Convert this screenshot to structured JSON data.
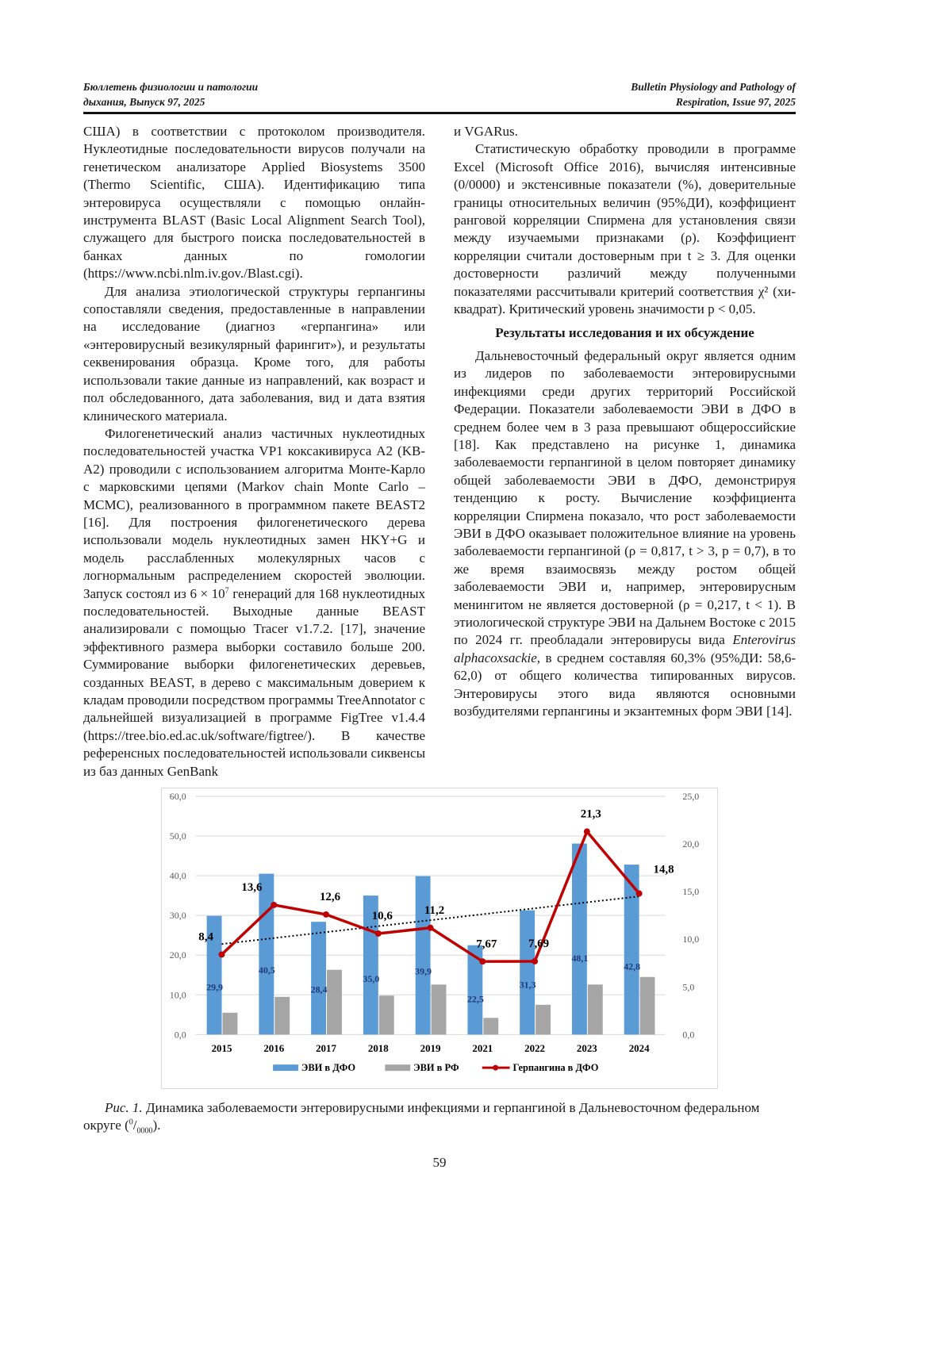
{
  "header": {
    "left_line1": "Бюллетень физиологии и патологии",
    "left_line2": "дыхания, Выпуск 97, 2025",
    "right_line1": "Bulletin Physiology and Pathology of",
    "right_line2": "Respiration, Issue 97, 2025"
  },
  "left_column": {
    "p0": "США) в соответствии с протоколом производителя. Нуклеотидные последовательности вирусов получали на генетическом анализаторе Applied Biosystems 3500 (Thermo Scientific, США). Идентификацию типа энтеровируса осуществляли с помощью онлайн-инструмента BLAST (Basic Local Alignment Search Tool), служащего для быстрого поиска последовательностей в банках данных по гомологии (https://www.ncbi.nlm.iv.gov./Blast.cgi).",
    "p1": "Для анализа этиологической структуры герпангины сопоставляли сведения, предоставленные в направлении на исследование (диагноз «герпангина» или «энтеровирусный везикулярный фарингит»), и результаты секвенирования образца. Кроме того, для работы использовали такие данные из направлений, как возраст и пол обследованного, дата заболевания, вид и дата взятия клинического материала.",
    "p2a": "Филогенетический анализ частичных нуклеотидных последовательностей участка VP1 коксакивируса A2 (KB-A2) проводили с использованием алгоритма Монте-Карло с марковскими цепями (Markov chain Monte Carlo – MCMC), реализованного в программном пакете BEAST2 [16]. Для построения филогенетического дерева использовали модель нуклеотидных замен HKY+G и модель расслабленных молекулярных часов с логнормальным распределением скоростей эволюции. Запуск состоял из 6 × 10",
    "p2sup": "7",
    "p2b": " генераций для 168 нуклеотидных последовательностей. Выходные данные BEAST анализировали с помощью Tracer v1.7.2. [17], значение эффективного размера выборки составило больше 200. Суммирование выборки филогенетических деревьев, созданных BEAST, в дерево с максимальным доверием к кладам проводили посредством программы TreeAnnotator с дальнейшей визуализацией в программе FigTree v1.4.4 (https://tree.bio.ed.ac.uk/software/figtree/). В качестве референсных последовательностей использовали сиквенсы из баз данных GenBank"
  },
  "right_column": {
    "p0": "и VGARus.",
    "p1": "Статистическую обработку проводили в программе Excel (Microsoft Office 2016), вычисляя интенсивные (0/0000) и экстенсивные показатели (%), доверительные границы относительных величин (95%ДИ), коэффициент ранговой корреляции Спирмена для установления связи между изучаемыми признаками (ρ). Коэффициент корреляции считали достоверным при t ≥ 3. Для оценки достоверности различий между полученными показателями рассчитывали критерий соответствия χ² (хи-квадрат). Критический уровень значимости p < 0,05.",
    "heading": "Результаты исследования и их обсуждение",
    "p2a": "Дальневосточный федеральный округ является одним из лидеров по заболеваемости энтеровирусными инфекциями среди других территорий Российской Федерации. Показатели заболеваемости ЭВИ в ДФО в среднем более чем в 3 раза превышают общероссийские [18]. Как представлено на рисунке 1, динамика заболеваемости герпангиной в целом повторяет динамику общей заболеваемости ЭВИ в ДФО, демонстрируя тенденцию к росту. Вычисление коэффициента корреляции Спирмена показало, что рост заболеваемости ЭВИ в ДФО оказывает положительное влияние на уровень заболеваемости герпангиной (ρ = 0,817, t > 3, p = 0,7), в то же время взаимосвязь между ростом общей заболеваемости ЭВИ и, например, энтеровирусным менингитом не является достоверной (ρ = 0,217, t < 1). В этиологической структуре ЭВИ на Дальнем Востоке с 2015 по 2024 гг. преобладали энтеровирусы вида ",
    "p2italic": "Enterovirus alphacoxsackie",
    "p2b": ", в среднем составляя 60,3% (95%ДИ: 58,6-62,0) от общего количества типированных вирусов. Энтеровирусы этого вида являются основными возбудителями герпангины и экзантемных форм ЭВИ [14]."
  },
  "caption": {
    "label": "Рис. 1.",
    "text": " Динамика заболеваемости энтеровирусными инфекциями и герпангиной в Дальневосточном федеральном округе (",
    "sup": "0",
    "slash": "/",
    "sub": "0000",
    "end": ")."
  },
  "page_number": "59",
  "chart_data": {
    "type": "bar+line",
    "categories": [
      "2015",
      "2016",
      "2017",
      "2018",
      "2019",
      "2021",
      "2022",
      "2023",
      "2024"
    ],
    "y_left": {
      "range": [
        0,
        60
      ],
      "ticks": [
        "0,0",
        "10,0",
        "20,0",
        "30,0",
        "40,0",
        "50,0",
        "60,0"
      ]
    },
    "y_right": {
      "range": [
        0,
        25
      ],
      "ticks": [
        "0,0",
        "5,0",
        "10,0",
        "15,0",
        "20,0",
        "25,0"
      ]
    },
    "grid": true,
    "legend_position": "bottom",
    "series": [
      {
        "name": "ЭВИ в ДФО",
        "type": "bar",
        "axis": "left",
        "color": "#5b9bd5",
        "values": [
          29.9,
          40.5,
          28.4,
          35.0,
          39.9,
          22.5,
          31.3,
          48.1,
          42.8
        ],
        "labels": [
          "29,9",
          "40,5",
          "28,4",
          "35,0",
          "39,9",
          "22,5",
          "31,3",
          "48,1",
          "42,8"
        ]
      },
      {
        "name": "ЭВИ в РФ",
        "type": "bar",
        "axis": "left",
        "color": "#a5a5a5",
        "values": [
          5.5,
          9.5,
          16.3,
          9.8,
          12.6,
          4.2,
          7.5,
          12.6,
          14.5
        ]
      },
      {
        "name": "Герпангина в ДФО",
        "type": "line",
        "axis": "right",
        "color": "#c00000",
        "values": [
          8.4,
          13.6,
          12.6,
          10.6,
          11.2,
          7.67,
          7.69,
          21.3,
          14.8
        ],
        "labels": [
          "8,4",
          "13,6",
          "12,6",
          "10,6",
          "11,2",
          "7,67",
          "7,69",
          "21,3",
          "14,8"
        ]
      }
    ],
    "trendline": {
      "of": "Герпангина в ДФО",
      "type": "linear",
      "style": "dotted",
      "color": "#000000",
      "start": 9.5,
      "end": 14.5
    }
  }
}
